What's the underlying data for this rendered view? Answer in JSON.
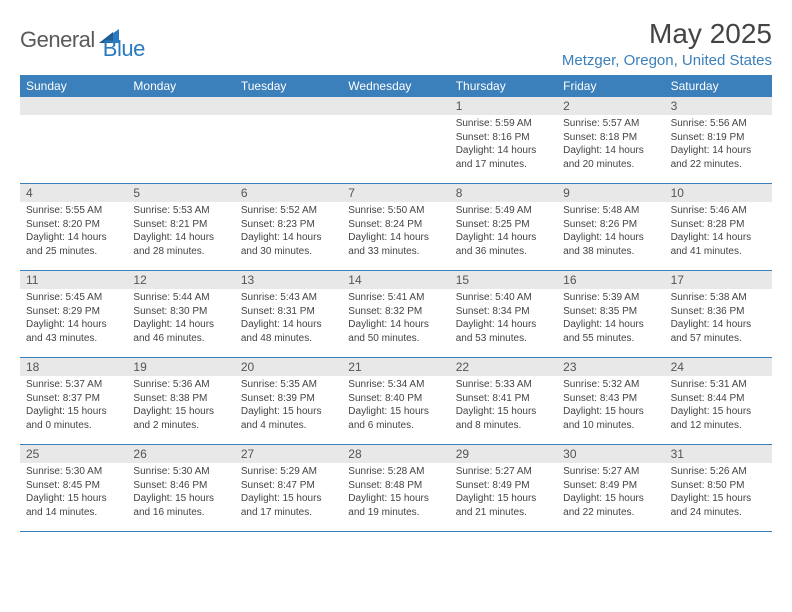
{
  "brand": {
    "general": "General",
    "blue": "Blue"
  },
  "title": "May 2025",
  "location": "Metzger, Oregon, United States",
  "colors": {
    "accent": "#3b7fbb",
    "dow_bg": "#3b7fbb",
    "dow_text": "#ffffff",
    "daynum_bg": "#e8e8e8",
    "daynum_text": "#555555",
    "body_text": "#444444",
    "row_border": "#3b7fbb",
    "logo_gray": "#5a5a5a"
  },
  "dow": [
    "Sunday",
    "Monday",
    "Tuesday",
    "Wednesday",
    "Thursday",
    "Friday",
    "Saturday"
  ],
  "weeks": [
    [
      null,
      null,
      null,
      null,
      {
        "n": "1",
        "sr": "5:59 AM",
        "ss": "8:16 PM",
        "dh": "14",
        "dm": "17"
      },
      {
        "n": "2",
        "sr": "5:57 AM",
        "ss": "8:18 PM",
        "dh": "14",
        "dm": "20"
      },
      {
        "n": "3",
        "sr": "5:56 AM",
        "ss": "8:19 PM",
        "dh": "14",
        "dm": "22"
      }
    ],
    [
      {
        "n": "4",
        "sr": "5:55 AM",
        "ss": "8:20 PM",
        "dh": "14",
        "dm": "25"
      },
      {
        "n": "5",
        "sr": "5:53 AM",
        "ss": "8:21 PM",
        "dh": "14",
        "dm": "28"
      },
      {
        "n": "6",
        "sr": "5:52 AM",
        "ss": "8:23 PM",
        "dh": "14",
        "dm": "30"
      },
      {
        "n": "7",
        "sr": "5:50 AM",
        "ss": "8:24 PM",
        "dh": "14",
        "dm": "33"
      },
      {
        "n": "8",
        "sr": "5:49 AM",
        "ss": "8:25 PM",
        "dh": "14",
        "dm": "36"
      },
      {
        "n": "9",
        "sr": "5:48 AM",
        "ss": "8:26 PM",
        "dh": "14",
        "dm": "38"
      },
      {
        "n": "10",
        "sr": "5:46 AM",
        "ss": "8:28 PM",
        "dh": "14",
        "dm": "41"
      }
    ],
    [
      {
        "n": "11",
        "sr": "5:45 AM",
        "ss": "8:29 PM",
        "dh": "14",
        "dm": "43"
      },
      {
        "n": "12",
        "sr": "5:44 AM",
        "ss": "8:30 PM",
        "dh": "14",
        "dm": "46"
      },
      {
        "n": "13",
        "sr": "5:43 AM",
        "ss": "8:31 PM",
        "dh": "14",
        "dm": "48"
      },
      {
        "n": "14",
        "sr": "5:41 AM",
        "ss": "8:32 PM",
        "dh": "14",
        "dm": "50"
      },
      {
        "n": "15",
        "sr": "5:40 AM",
        "ss": "8:34 PM",
        "dh": "14",
        "dm": "53"
      },
      {
        "n": "16",
        "sr": "5:39 AM",
        "ss": "8:35 PM",
        "dh": "14",
        "dm": "55"
      },
      {
        "n": "17",
        "sr": "5:38 AM",
        "ss": "8:36 PM",
        "dh": "14",
        "dm": "57"
      }
    ],
    [
      {
        "n": "18",
        "sr": "5:37 AM",
        "ss": "8:37 PM",
        "dh": "15",
        "dm": "0"
      },
      {
        "n": "19",
        "sr": "5:36 AM",
        "ss": "8:38 PM",
        "dh": "15",
        "dm": "2"
      },
      {
        "n": "20",
        "sr": "5:35 AM",
        "ss": "8:39 PM",
        "dh": "15",
        "dm": "4"
      },
      {
        "n": "21",
        "sr": "5:34 AM",
        "ss": "8:40 PM",
        "dh": "15",
        "dm": "6"
      },
      {
        "n": "22",
        "sr": "5:33 AM",
        "ss": "8:41 PM",
        "dh": "15",
        "dm": "8"
      },
      {
        "n": "23",
        "sr": "5:32 AM",
        "ss": "8:43 PM",
        "dh": "15",
        "dm": "10"
      },
      {
        "n": "24",
        "sr": "5:31 AM",
        "ss": "8:44 PM",
        "dh": "15",
        "dm": "12"
      }
    ],
    [
      {
        "n": "25",
        "sr": "5:30 AM",
        "ss": "8:45 PM",
        "dh": "15",
        "dm": "14"
      },
      {
        "n": "26",
        "sr": "5:30 AM",
        "ss": "8:46 PM",
        "dh": "15",
        "dm": "16"
      },
      {
        "n": "27",
        "sr": "5:29 AM",
        "ss": "8:47 PM",
        "dh": "15",
        "dm": "17"
      },
      {
        "n": "28",
        "sr": "5:28 AM",
        "ss": "8:48 PM",
        "dh": "15",
        "dm": "19"
      },
      {
        "n": "29",
        "sr": "5:27 AM",
        "ss": "8:49 PM",
        "dh": "15",
        "dm": "21"
      },
      {
        "n": "30",
        "sr": "5:27 AM",
        "ss": "8:49 PM",
        "dh": "15",
        "dm": "22"
      },
      {
        "n": "31",
        "sr": "5:26 AM",
        "ss": "8:50 PM",
        "dh": "15",
        "dm": "24"
      }
    ]
  ],
  "labels": {
    "sunrise": "Sunrise:",
    "sunset": "Sunset:",
    "daylight": "Daylight:",
    "hours": "hours",
    "and": "and",
    "minutes": "minutes."
  }
}
